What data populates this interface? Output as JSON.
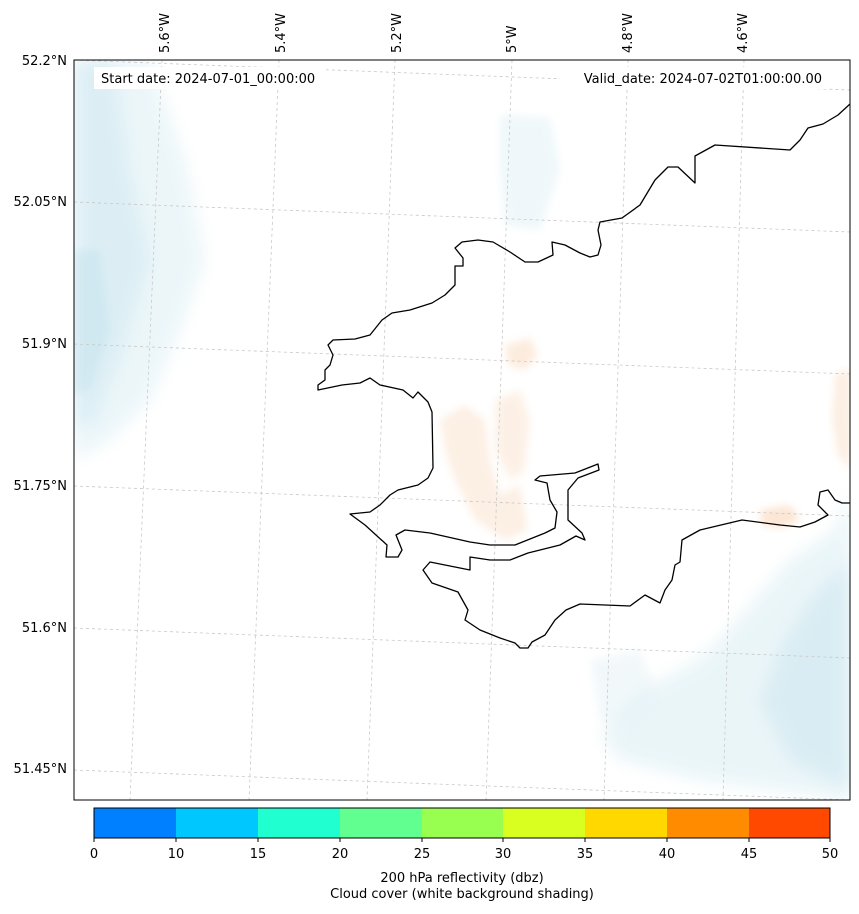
{
  "map": {
    "start_date_label": "Start date: 2024-07-01_00:00:00",
    "valid_date_label": "Valid_date: 2024-07-02T01:00:00.00",
    "lon_labels": [
      "5.6°W",
      "5.4°W",
      "5.2°W",
      "5°W",
      "4.8°W",
      "4.6°W"
    ],
    "lat_labels": [
      "52.2°N",
      "52.05°N",
      "51.9°N",
      "51.75°N",
      "51.6°N",
      "51.45°N"
    ],
    "coastline_color": "#000000",
    "cloud_shading_color": "#d6ecf3",
    "reflectivity_weak_color": "#fbe3cf"
  },
  "colorbar": {
    "ticks": [
      "0",
      "10",
      "15",
      "20",
      "25",
      "30",
      "35",
      "40",
      "45",
      "50"
    ],
    "colors": [
      "#0080ff",
      "#00c8ff",
      "#20ffd0",
      "#60ff90",
      "#98ff50",
      "#d8ff20",
      "#ffd800",
      "#ff8c00",
      "#ff4800"
    ],
    "label_line1": "200 hPa reflectivity (dbz)",
    "label_line2": "Cloud cover (white background shading)"
  }
}
